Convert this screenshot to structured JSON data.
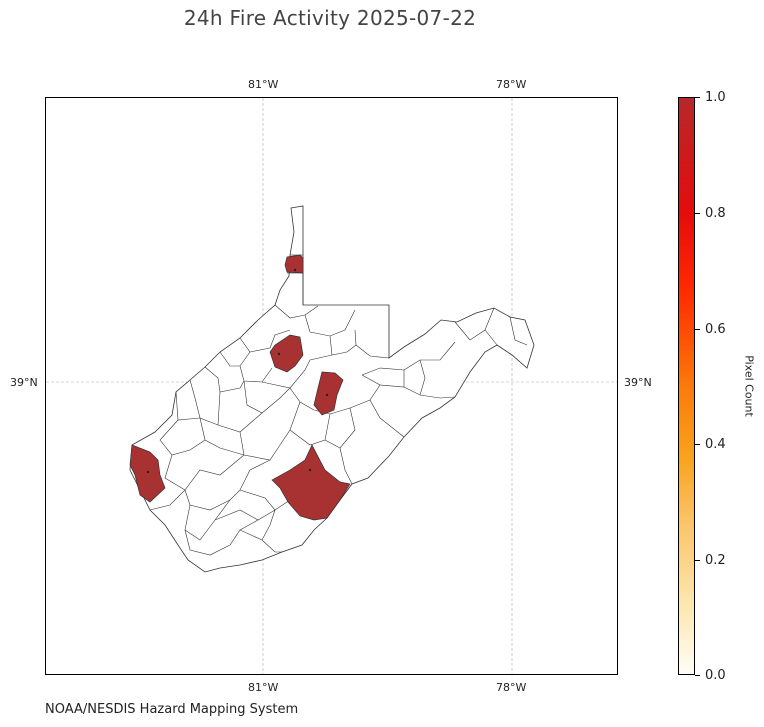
{
  "title": "24h Fire Activity 2025-07-22",
  "credit": "NOAA/NESDIS Hazard Mapping System",
  "axes": {
    "top_ticks": [
      "81°W",
      "78°W"
    ],
    "bottom_ticks": [
      "81°W",
      "78°W"
    ],
    "left_ticks": [
      "39°N"
    ],
    "right_ticks": [
      "39°N"
    ]
  },
  "colorbar": {
    "label": "Pixel Count",
    "ticks": [
      "0.0",
      "0.2",
      "0.4",
      "0.6",
      "0.8",
      "1.0"
    ],
    "min": 0.0,
    "max": 1.0,
    "colors": [
      "#fffdf5",
      "#fde7b0",
      "#f9a11c",
      "#ff2c00",
      "#b7282a"
    ]
  },
  "highlight_color": "#a83232",
  "highlighted_county_count": 5
}
